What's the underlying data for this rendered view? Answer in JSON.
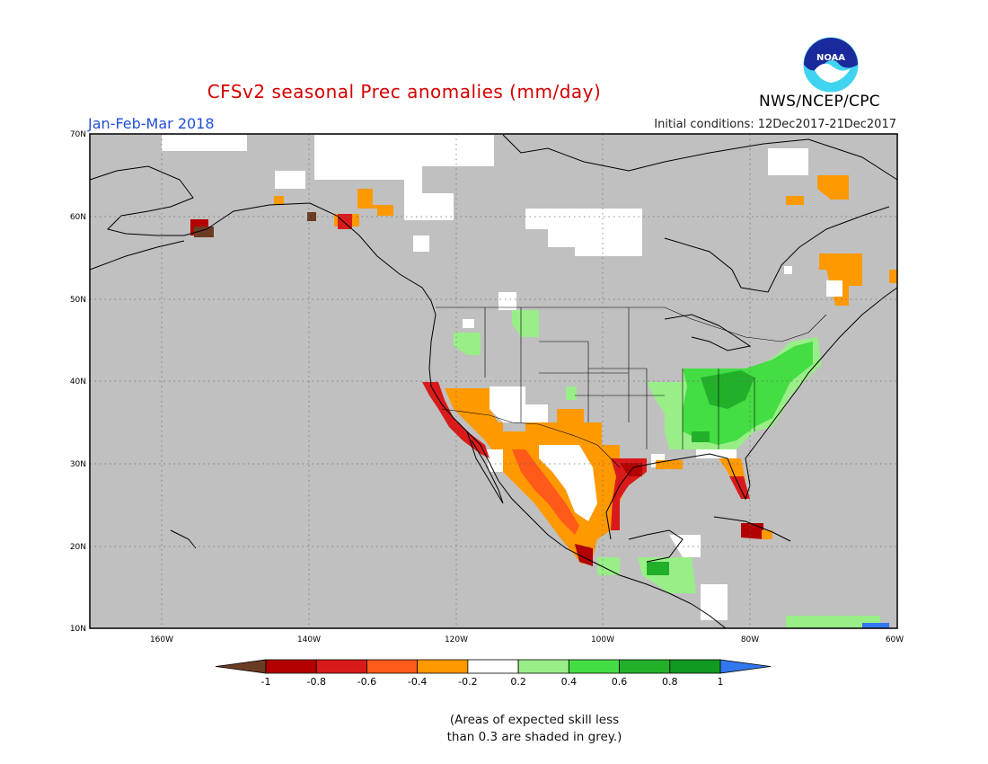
{
  "header": {
    "title": "CFSv2 seasonal Prec anomalies (mm/day)",
    "period": "Jan-Feb-Mar 2018",
    "initial_conditions": "Initial conditions: 12Dec2017-21Dec2017",
    "agency": "NWS/NCEP/CPC",
    "logo_text": "NOAA"
  },
  "axes": {
    "lat_labels": [
      "70N",
      "60N",
      "50N",
      "40N",
      "30N",
      "20N",
      "10N"
    ],
    "lon_labels": [
      "160W",
      "140W",
      "120W",
      "100W",
      "80W",
      "60W"
    ]
  },
  "legend": {
    "ticks": [
      "-1",
      "-0.8",
      "-0.6",
      "-0.4",
      "-0.2",
      "0.2",
      "0.4",
      "0.6",
      "0.8",
      "1"
    ],
    "colors": [
      "#6b3b24",
      "#b30000",
      "#d91a1a",
      "#ff5a1a",
      "#ff9900",
      "#ffffff",
      "#99ee88",
      "#44dd44",
      "#22b02a",
      "#119922",
      "#3377ee"
    ]
  },
  "footnote": {
    "line1": "(Areas of expected skill less",
    "line2": "than 0.3 are shaded in grey.)"
  },
  "colors": {
    "skill_grey": "#c0c0c0",
    "title_red": "#d40000",
    "period_blue": "#1f4fd6"
  }
}
